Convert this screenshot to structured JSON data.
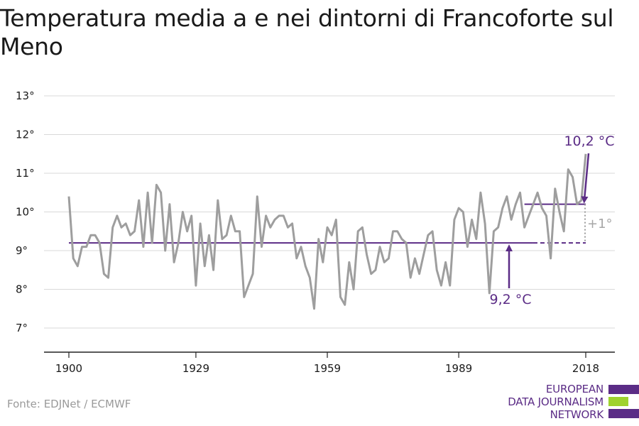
{
  "title": "Temperatura media a e nei dintorni di Francoforte sul Meno",
  "source": "Fonte: EDJNet / ECMWF",
  "logo": {
    "line1": "EUROPEAN",
    "line2": "DATA JOURNALISM",
    "line3": "NETWORK"
  },
  "colors": {
    "series": "#9e9e9e",
    "accent": "#5b2c86",
    "logo_green": "#9fd22f",
    "grid": "#d9d9d9"
  },
  "chart_data": {
    "type": "line",
    "title": "Temperatura media a e nei dintorni di Francoforte sul Meno",
    "xlabel": "",
    "ylabel": "",
    "xlim": [
      1900,
      2018
    ],
    "ylim": [
      7,
      13
    ],
    "y_ticks": [
      7,
      8,
      9,
      10,
      11,
      12,
      13
    ],
    "y_tick_labels": [
      "7°",
      "8°",
      "9°",
      "10°",
      "11°",
      "12°",
      "13°"
    ],
    "x_ticks": [
      1900,
      1929,
      1959,
      1989,
      2018
    ],
    "x_tick_labels": [
      "1900",
      "1929",
      "1959",
      "1989",
      "2018"
    ],
    "grid": "horizontal",
    "series": [
      {
        "x": [
          1900,
          1901,
          1902,
          1903,
          1904,
          1905,
          1906,
          1907,
          1908,
          1909,
          1910,
          1911,
          1912,
          1913,
          1914,
          1915,
          1916,
          1917,
          1918,
          1919,
          1920,
          1921,
          1922,
          1923,
          1924,
          1925,
          1926,
          1927,
          1928,
          1929,
          1930,
          1931,
          1932,
          1933,
          1934,
          1935,
          1936,
          1937,
          1938,
          1939,
          1940,
          1941,
          1942,
          1943,
          1944,
          1945,
          1946,
          1947,
          1948,
          1949,
          1950,
          1951,
          1952,
          1953,
          1954,
          1955,
          1956,
          1957,
          1958,
          1959,
          1960,
          1961,
          1962,
          1963,
          1964,
          1965,
          1966,
          1967,
          1968,
          1969,
          1970,
          1971,
          1972,
          1973,
          1974,
          1975,
          1976,
          1977,
          1978,
          1979,
          1980,
          1981,
          1982,
          1983,
          1984,
          1985,
          1986,
          1987,
          1988,
          1989,
          1990,
          1991,
          1992,
          1993,
          1994,
          1995,
          1996,
          1997,
          1998,
          1999,
          2000,
          2001,
          2002,
          2003,
          2004,
          2005,
          2006,
          2007,
          2008,
          2009,
          2010,
          2011,
          2012,
          2013,
          2014,
          2015,
          2016,
          2017,
          2018
        ],
        "y": [
          10.4,
          8.8,
          8.6,
          9.1,
          9.1,
          9.4,
          9.4,
          9.2,
          8.4,
          8.3,
          9.6,
          9.9,
          9.6,
          9.7,
          9.4,
          9.5,
          10.3,
          9.1,
          10.5,
          9.2,
          10.7,
          10.5,
          9.0,
          10.2,
          8.7,
          9.2,
          10.0,
          9.5,
          9.9,
          8.1,
          9.7,
          8.6,
          9.4,
          8.5,
          10.3,
          9.3,
          9.4,
          9.9,
          9.5,
          9.5,
          7.8,
          8.1,
          8.4,
          10.4,
          9.1,
          9.9,
          9.6,
          9.8,
          9.9,
          9.9,
          9.6,
          9.7,
          8.8,
          9.1,
          8.6,
          8.3,
          7.5,
          9.3,
          8.7,
          9.6,
          9.4,
          9.8,
          7.8,
          7.6,
          8.7,
          8.0,
          9.5,
          9.6,
          8.9,
          8.4,
          8.5,
          9.1,
          8.7,
          8.8,
          9.5,
          9.5,
          9.3,
          9.2,
          8.3,
          8.8,
          8.4,
          8.9,
          9.4,
          9.5,
          8.5,
          8.1,
          8.7,
          8.1,
          9.8,
          10.1,
          10.0,
          9.1,
          9.8,
          9.3,
          10.5,
          9.7,
          7.9,
          9.5,
          9.6,
          10.1,
          10.4,
          9.8,
          10.2,
          10.5,
          9.6,
          9.9,
          10.2,
          10.5,
          10.1,
          9.9,
          8.8,
          10.6,
          10.0,
          9.5,
          11.1,
          10.9,
          10.2,
          10.3,
          11.5
        ]
      }
    ],
    "reference_lines": [
      {
        "label": "9,2 °C",
        "value": 9.2,
        "x_from": 1900,
        "x_to": 2018
      },
      {
        "label": "10,2 °C",
        "value": 10.2,
        "x_from": 2004,
        "x_to": 2018
      }
    ],
    "annotations": [
      {
        "text": "10,2 °C"
      },
      {
        "text": "9,2 °C"
      },
      {
        "text": "+1°"
      }
    ]
  }
}
